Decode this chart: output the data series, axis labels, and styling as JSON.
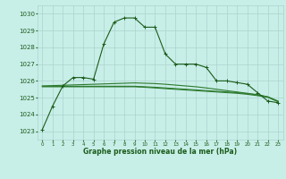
{
  "title": "Graphe pression niveau de la mer (hPa)",
  "background_color": "#c8eee8",
  "grid_color": "#aad4cc",
  "line_color_main": "#1a5c1a",
  "line_color_flat": "#2d7a2d",
  "xlim": [
    -0.5,
    23.5
  ],
  "ylim": [
    1022.5,
    1030.5
  ],
  "yticks": [
    1023,
    1024,
    1025,
    1026,
    1027,
    1028,
    1029,
    1030
  ],
  "xticks": [
    0,
    1,
    2,
    3,
    4,
    5,
    6,
    7,
    8,
    9,
    10,
    11,
    12,
    13,
    14,
    15,
    16,
    17,
    18,
    19,
    20,
    21,
    22,
    23
  ],
  "series1": [
    1023.1,
    1024.5,
    1025.7,
    1026.2,
    1026.2,
    1026.1,
    1028.2,
    1029.5,
    1029.75,
    1029.75,
    1029.2,
    1029.2,
    1027.6,
    1027.0,
    1027.0,
    1027.0,
    1026.8,
    1026.0,
    1026.0,
    1025.9,
    1025.8,
    1025.3,
    1024.8,
    1024.7
  ],
  "series2": [
    1025.7,
    1025.72,
    1025.74,
    1025.76,
    1025.78,
    1025.8,
    1025.82,
    1025.84,
    1025.86,
    1025.88,
    1025.86,
    1025.84,
    1025.8,
    1025.75,
    1025.7,
    1025.65,
    1025.58,
    1025.5,
    1025.42,
    1025.34,
    1025.26,
    1025.18,
    1025.05,
    1024.8
  ],
  "series3": [
    1025.68,
    1025.68,
    1025.68,
    1025.68,
    1025.68,
    1025.68,
    1025.68,
    1025.68,
    1025.68,
    1025.68,
    1025.65,
    1025.62,
    1025.58,
    1025.54,
    1025.5,
    1025.46,
    1025.42,
    1025.38,
    1025.34,
    1025.3,
    1025.24,
    1025.16,
    1025.05,
    1024.78
  ],
  "series4": [
    1025.65,
    1025.65,
    1025.65,
    1025.65,
    1025.65,
    1025.65,
    1025.65,
    1025.65,
    1025.65,
    1025.65,
    1025.62,
    1025.58,
    1025.54,
    1025.5,
    1025.46,
    1025.42,
    1025.38,
    1025.34,
    1025.3,
    1025.26,
    1025.2,
    1025.12,
    1025.02,
    1024.76
  ]
}
